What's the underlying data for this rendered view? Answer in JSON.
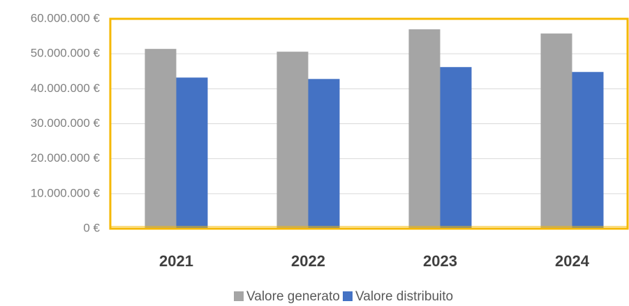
{
  "chart_data": {
    "type": "bar",
    "categories": [
      "2021",
      "2022",
      "2023",
      "2024"
    ],
    "series": [
      {
        "name": "Valore generato",
        "color": "#a5a5a5",
        "values": [
          51400000,
          50600000,
          57000000,
          55800000
        ]
      },
      {
        "name": "Valore distribuito",
        "color": "#4472c4",
        "values": [
          43200000,
          42800000,
          46200000,
          44800000
        ]
      }
    ],
    "ylim": [
      0,
      60000000
    ],
    "yticks": [
      {
        "value": 0,
        "label": "0 €"
      },
      {
        "value": 10000000,
        "label": "10.000.000 €"
      },
      {
        "value": 20000000,
        "label": "20.000.000 €"
      },
      {
        "value": 30000000,
        "label": "30.000.000 €"
      },
      {
        "value": 40000000,
        "label": "40.000.000 €"
      },
      {
        "value": 50000000,
        "label": "50.000.000 €"
      },
      {
        "value": 60000000,
        "label": "60.000.000 €"
      }
    ],
    "grid": true,
    "legend": "bottom"
  }
}
